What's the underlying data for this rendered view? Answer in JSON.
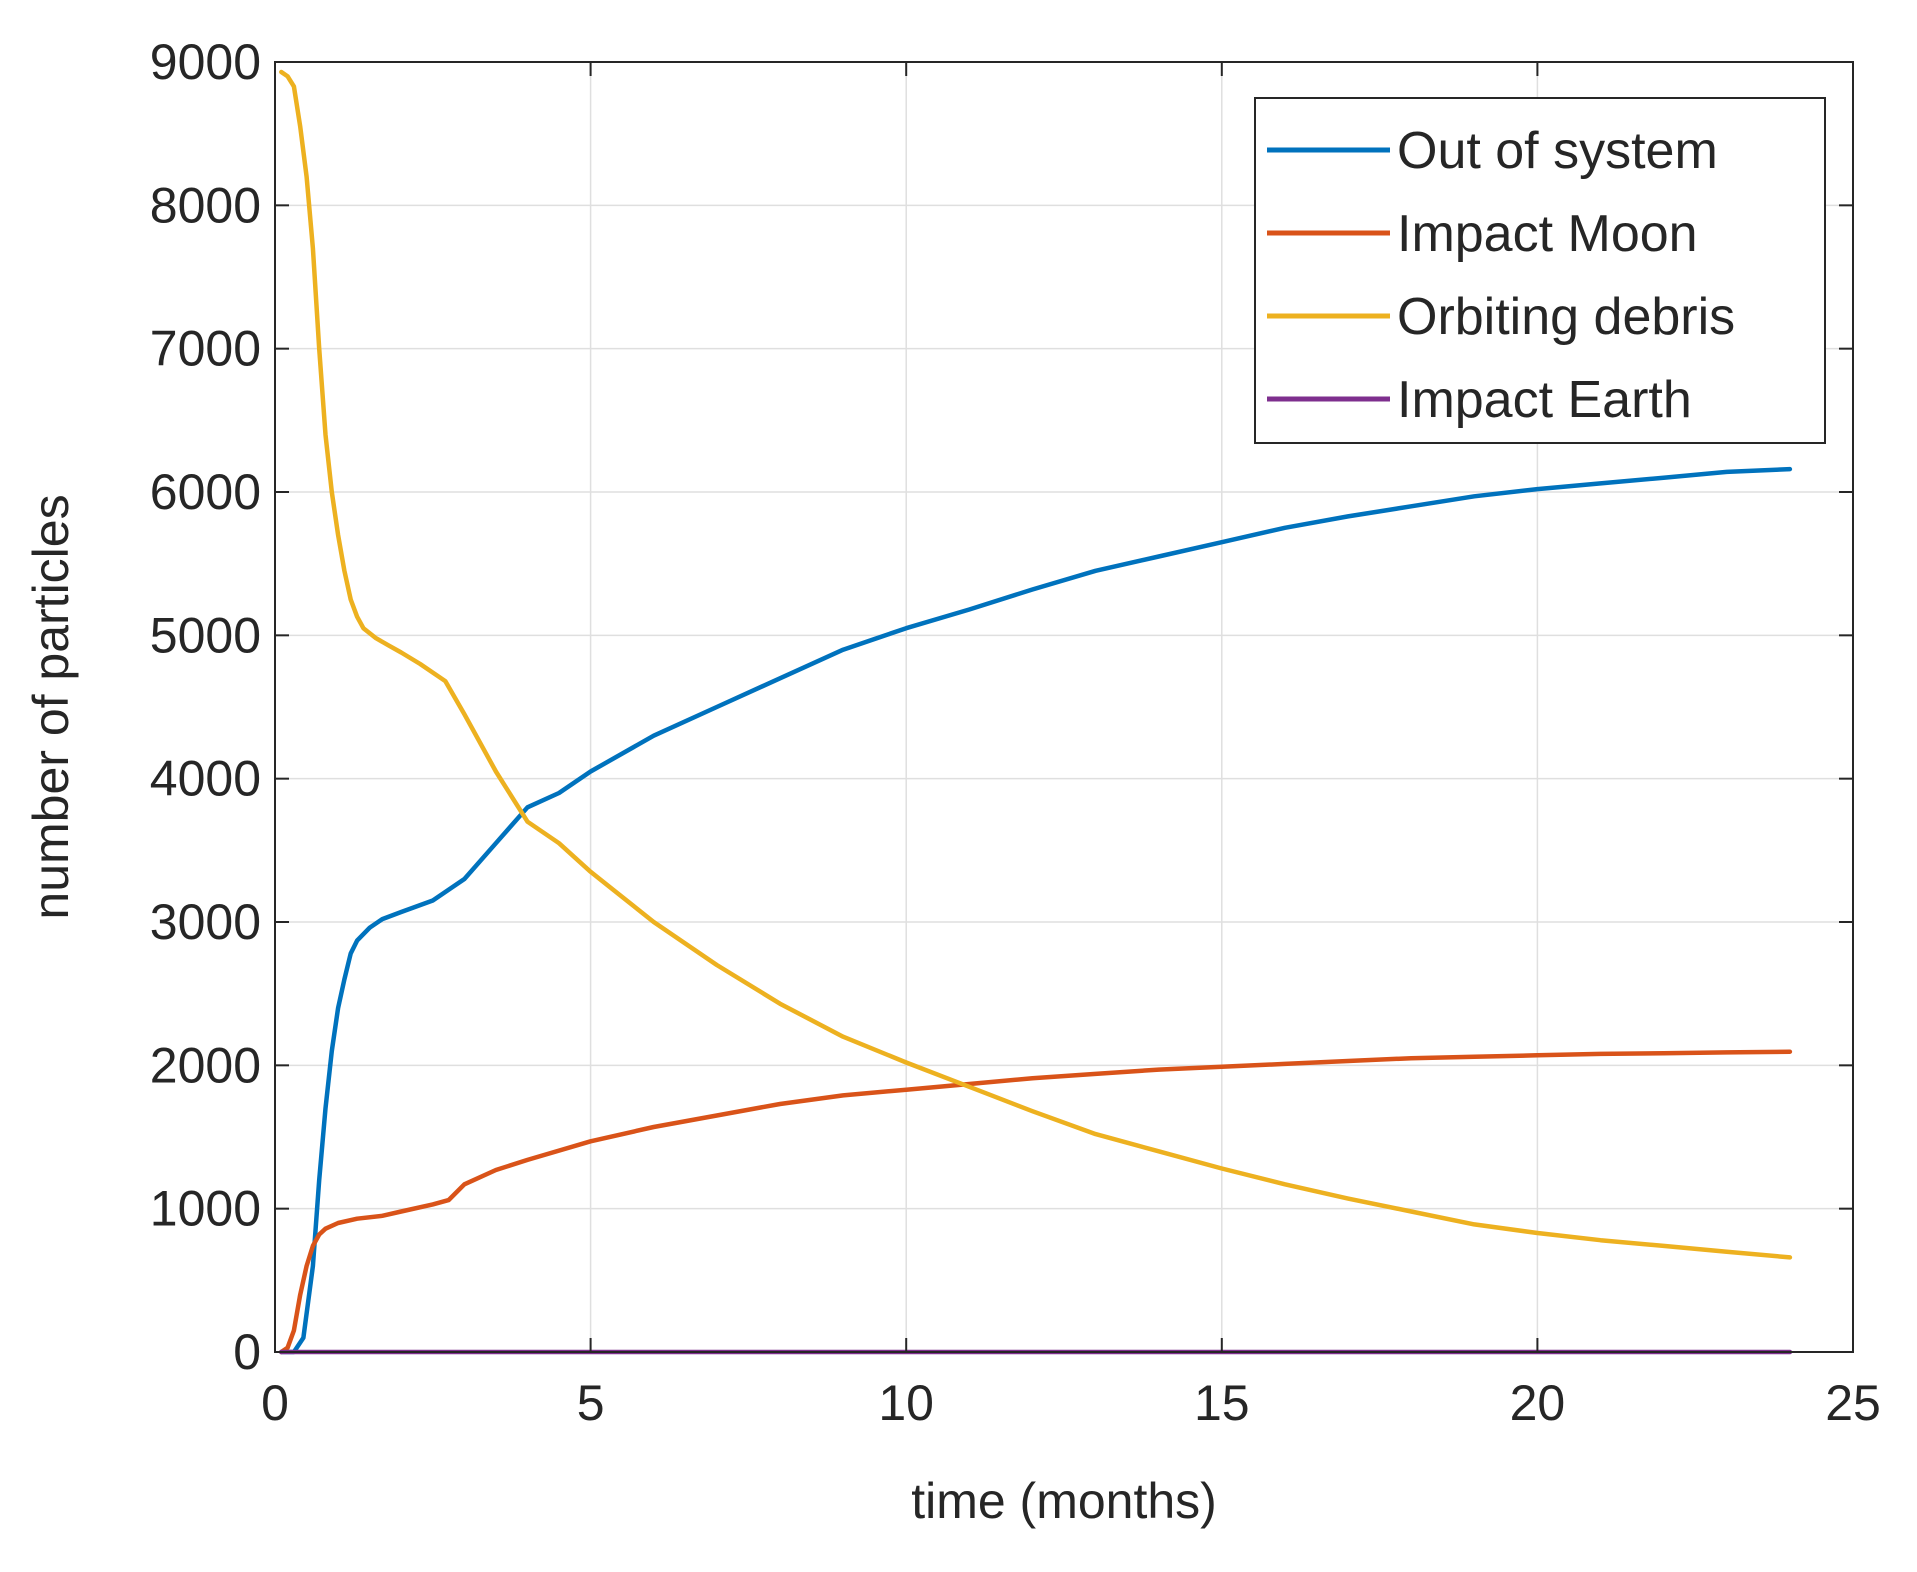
{
  "chart_data": {
    "type": "line",
    "xlabel": "time (months)",
    "ylabel": "number of particles",
    "xlim": [
      0,
      25
    ],
    "ylim": [
      0,
      9000
    ],
    "xticks": [
      0,
      5,
      10,
      15,
      20,
      25
    ],
    "yticks": [
      0,
      1000,
      2000,
      3000,
      4000,
      5000,
      6000,
      7000,
      8000,
      9000
    ],
    "xtick_labels": [
      "0",
      "5",
      "10",
      "15",
      "20",
      "25"
    ],
    "ytick_labels": [
      "0",
      "1000",
      "2000",
      "3000",
      "4000",
      "5000",
      "6000",
      "7000",
      "8000",
      "9000"
    ],
    "grid": true,
    "legend_position": "top-right",
    "series": [
      {
        "name": "Out of system",
        "color": "#0072BD",
        "x": [
          0.1,
          0.3,
          0.45,
          0.6,
          0.7,
          0.8,
          0.9,
          1.0,
          1.1,
          1.2,
          1.3,
          1.5,
          1.7,
          2.0,
          2.5,
          3.0,
          3.5,
          4.0,
          4.5,
          5.0,
          6.0,
          7.0,
          8.0,
          9.0,
          10.0,
          11.0,
          12.0,
          13.0,
          14.0,
          15.0,
          16.0,
          17.0,
          18.0,
          19.0,
          20.0,
          21.0,
          22.0,
          23.0,
          24.0
        ],
        "y": [
          0,
          0,
          100,
          600,
          1200,
          1700,
          2100,
          2400,
          2600,
          2780,
          2870,
          2960,
          3020,
          3070,
          3150,
          3300,
          3550,
          3800,
          3900,
          4050,
          4300,
          4500,
          4700,
          4900,
          5050,
          5180,
          5320,
          5450,
          5550,
          5650,
          5750,
          5830,
          5900,
          5970,
          6020,
          6060,
          6100,
          6140,
          6160
        ]
      },
      {
        "name": "Impact Moon",
        "color": "#D95319",
        "x": [
          0.1,
          0.2,
          0.3,
          0.4,
          0.5,
          0.6,
          0.7,
          0.8,
          1.0,
          1.3,
          1.7,
          2.0,
          2.5,
          2.75,
          3.0,
          3.5,
          4.0,
          5.0,
          6.0,
          7.0,
          8.0,
          9.0,
          10.0,
          11.0,
          12.0,
          13.0,
          14.0,
          15.0,
          16.0,
          17.0,
          18.0,
          19.0,
          20.0,
          21.0,
          22.0,
          23.0,
          24.0
        ],
        "y": [
          0,
          30,
          150,
          400,
          600,
          740,
          820,
          860,
          900,
          930,
          950,
          980,
          1030,
          1060,
          1170,
          1270,
          1340,
          1470,
          1570,
          1650,
          1730,
          1790,
          1830,
          1870,
          1910,
          1940,
          1970,
          1990,
          2010,
          2030,
          2050,
          2060,
          2070,
          2080,
          2085,
          2090,
          2095
        ]
      },
      {
        "name": "Orbiting debris",
        "color": "#EDB120",
        "x": [
          0.1,
          0.2,
          0.3,
          0.4,
          0.5,
          0.6,
          0.7,
          0.8,
          0.9,
          1.0,
          1.1,
          1.2,
          1.3,
          1.4,
          1.6,
          1.8,
          2.0,
          2.3,
          2.7,
          3.0,
          3.5,
          4.0,
          4.5,
          5.0,
          6.0,
          7.0,
          8.0,
          9.0,
          10.0,
          11.0,
          12.0,
          13.0,
          14.0,
          15.0,
          16.0,
          17.0,
          18.0,
          19.0,
          20.0,
          21.0,
          22.0,
          23.0,
          24.0
        ],
        "y": [
          8930,
          8900,
          8830,
          8550,
          8200,
          7700,
          7000,
          6400,
          6000,
          5700,
          5450,
          5250,
          5130,
          5050,
          4980,
          4930,
          4880,
          4800,
          4680,
          4450,
          4050,
          3700,
          3550,
          3350,
          3000,
          2700,
          2430,
          2200,
          2020,
          1850,
          1680,
          1520,
          1400,
          1280,
          1170,
          1070,
          980,
          890,
          830,
          780,
          740,
          700,
          660
        ]
      },
      {
        "name": "Impact Earth",
        "color": "#7E2F8E",
        "x": [
          0.1,
          24.0
        ],
        "y": [
          0,
          0
        ]
      }
    ]
  }
}
